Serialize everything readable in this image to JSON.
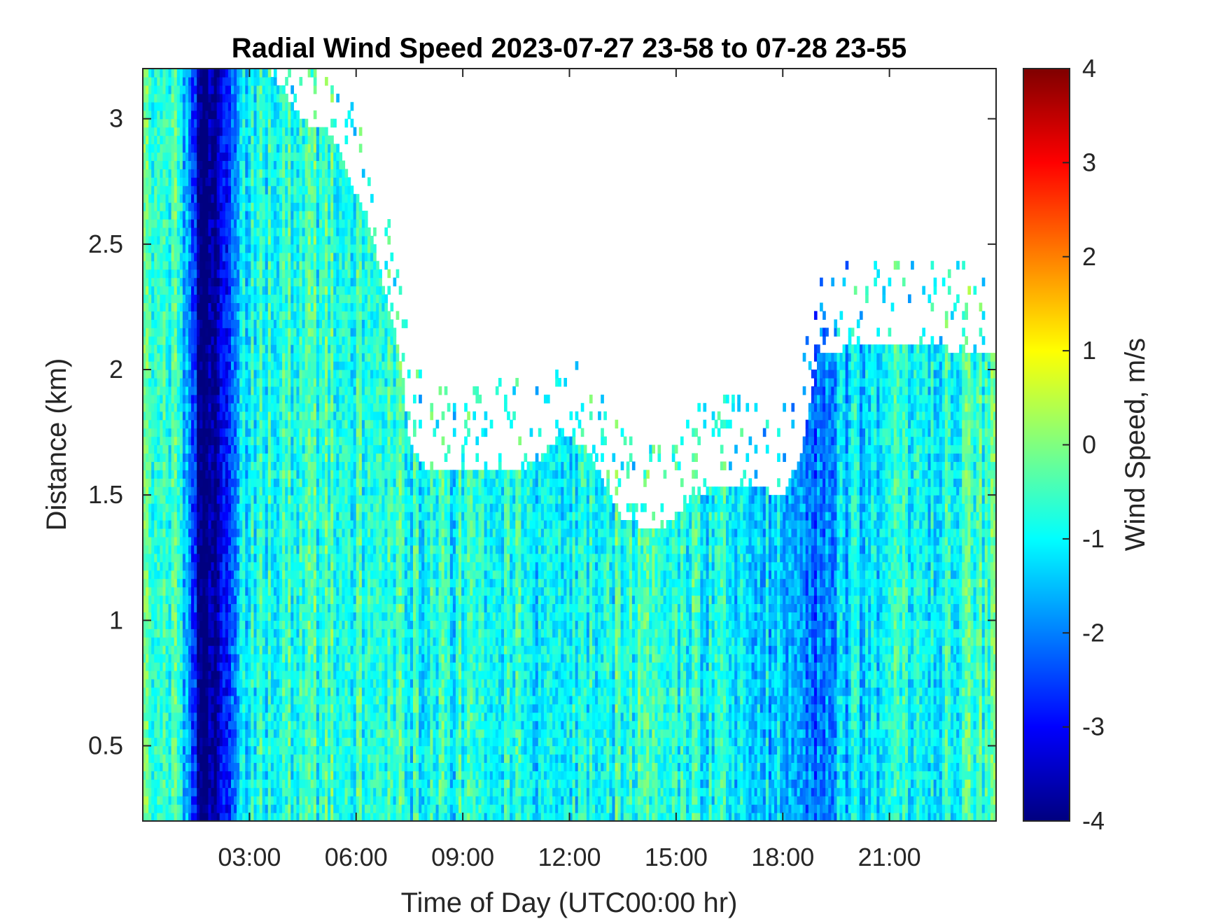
{
  "chart_data": {
    "type": "heatmap",
    "title": "Radial Wind Speed 2023-07-27 23-58 to 07-28 23-55",
    "xlabel": "Time of Day (UTC00:00 hr)",
    "ylabel": "Distance (km)",
    "colorbar_label": "Wind Speed, m/s",
    "colormap": "jet",
    "xlim_hours": [
      0,
      24
    ],
    "ylim_km": [
      0.2,
      3.2
    ],
    "clim": [
      -4,
      4
    ],
    "x_ticks": [
      {
        "hour": 3,
        "label": "03:00"
      },
      {
        "hour": 6,
        "label": "06:00"
      },
      {
        "hour": 9,
        "label": "09:00"
      },
      {
        "hour": 12,
        "label": "12:00"
      },
      {
        "hour": 15,
        "label": "15:00"
      },
      {
        "hour": 18,
        "label": "18:00"
      },
      {
        "hour": 21,
        "label": "21:00"
      }
    ],
    "y_ticks": [
      {
        "km": 0.5,
        "label": "0.5"
      },
      {
        "km": 1,
        "label": "1"
      },
      {
        "km": 1.5,
        "label": "1.5"
      },
      {
        "km": 2,
        "label": "2"
      },
      {
        "km": 2.5,
        "label": "2.5"
      },
      {
        "km": 3,
        "label": "3"
      }
    ],
    "colorbar_ticks": [
      {
        "value": 4,
        "label": "4"
      },
      {
        "value": 3,
        "label": "3"
      },
      {
        "value": 2,
        "label": "2"
      },
      {
        "value": 1,
        "label": "1"
      },
      {
        "value": 0,
        "label": "0"
      },
      {
        "value": -1,
        "label": "-1"
      },
      {
        "value": -2,
        "label": "-2"
      },
      {
        "value": -3,
        "label": "-3"
      },
      {
        "value": -4,
        "label": "-4"
      }
    ],
    "data_top_km": [
      [
        0.0,
        3.2
      ],
      [
        0.3,
        3.2
      ],
      [
        1.0,
        3.2
      ],
      [
        2.0,
        3.2
      ],
      [
        3.5,
        3.2
      ],
      [
        4.5,
        3.0
      ],
      [
        5.5,
        2.9
      ],
      [
        6.5,
        2.5
      ],
      [
        7.0,
        2.2
      ],
      [
        7.3,
        2.0
      ],
      [
        7.5,
        1.7
      ],
      [
        8.0,
        1.6
      ],
      [
        10.0,
        1.6
      ],
      [
        11.0,
        1.62
      ],
      [
        11.8,
        1.75
      ],
      [
        12.5,
        1.68
      ],
      [
        13.5,
        1.4
      ],
      [
        14.5,
        1.35
      ],
      [
        15.5,
        1.5
      ],
      [
        16.5,
        1.55
      ],
      [
        17.5,
        1.52
      ],
      [
        18.0,
        1.5
      ],
      [
        18.5,
        1.65
      ],
      [
        19.0,
        2.05
      ],
      [
        20.0,
        2.1
      ],
      [
        21.0,
        2.1
      ],
      [
        22.0,
        2.1
      ],
      [
        24.0,
        2.05
      ]
    ],
    "mean_speed_by_hour": [
      [
        0.0,
        -0.3
      ],
      [
        1.0,
        -0.5
      ],
      [
        1.7,
        -4.0
      ],
      [
        2.2,
        -3.5
      ],
      [
        3.0,
        -0.8
      ],
      [
        4.5,
        -0.7
      ],
      [
        6.0,
        -0.6
      ],
      [
        8.0,
        -0.8
      ],
      [
        10.0,
        -0.9
      ],
      [
        12.0,
        -1.0
      ],
      [
        14.0,
        -0.6
      ],
      [
        16.0,
        -0.9
      ],
      [
        18.0,
        -1.4
      ],
      [
        19.0,
        -2.0
      ],
      [
        20.0,
        -1.3
      ],
      [
        21.0,
        -1.0
      ],
      [
        22.0,
        -0.8
      ],
      [
        24.0,
        -0.6
      ]
    ]
  }
}
